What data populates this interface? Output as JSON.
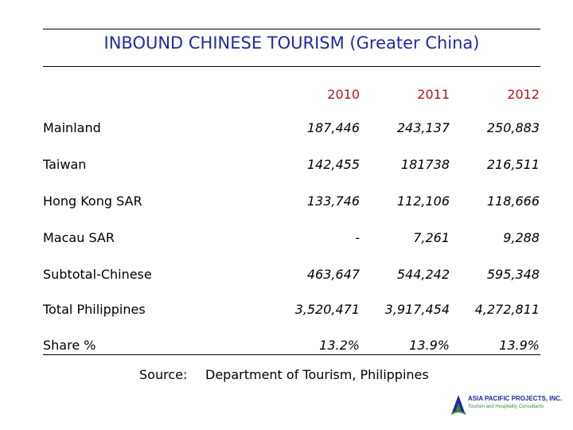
{
  "title": "INBOUND  CHINESE  TOURISM  (Greater China)",
  "columns": [
    "2010",
    "2011",
    "2012"
  ],
  "rows": [
    {
      "label": "Mainland",
      "values": [
        "187,446",
        "243,137",
        "250,883"
      ]
    },
    {
      "label": "Taiwan",
      "values": [
        "142,455",
        "181738",
        "216,511"
      ]
    },
    {
      "label": "Hong Kong SAR",
      "values": [
        "133,746",
        "112,106",
        "118,666"
      ]
    },
    {
      "label": "Macau SAR",
      "values": [
        "-",
        "7,261",
        "9,288"
      ]
    },
    {
      "label": "Subtotal-Chinese",
      "values": [
        "463,647",
        "544,242",
        "595,348"
      ]
    },
    {
      "label": "Total Philippines",
      "values": [
        "3,520,471",
        "3,917,454",
        "4,272,811"
      ]
    },
    {
      "label": "Share %",
      "values": [
        "13.2%",
        "13.9%",
        "13.9%"
      ]
    }
  ],
  "source": {
    "label": "Source:",
    "text": "Department of  Tourism, Philippines"
  },
  "logo": {
    "name": "ASIA PACIFIC PROJECTS, INC.",
    "tagline": "Tourism and Hospitality Consultants"
  },
  "colors": {
    "title": "#1f2a9e",
    "year": "#b01818",
    "logo_green": "#3a8a3a"
  }
}
